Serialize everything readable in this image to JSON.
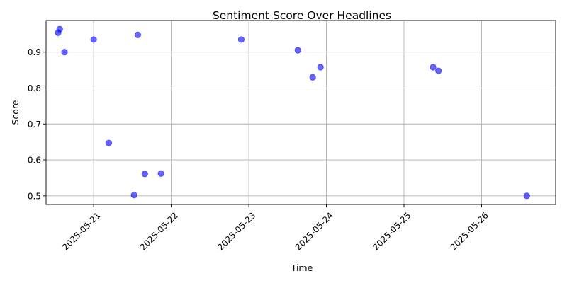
{
  "chart_data": {
    "type": "scatter",
    "title": "Sentiment Score Over Headlines",
    "xlabel": "Time",
    "ylabel": "Score",
    "x_scale": "date",
    "xlim": [
      "2025-05-20T09:17",
      "2025-05-26T22:55"
    ],
    "ylim": [
      0.476,
      0.988
    ],
    "grid": true,
    "marker_color": "#0000ff",
    "marker_alpha": 0.6,
    "x_ticks": [
      {
        "value": "2025-05-21",
        "label": "2025-05-21"
      },
      {
        "value": "2025-05-22",
        "label": "2025-05-22"
      },
      {
        "value": "2025-05-23",
        "label": "2025-05-23"
      },
      {
        "value": "2025-05-24",
        "label": "2025-05-24"
      },
      {
        "value": "2025-05-25",
        "label": "2025-05-25"
      },
      {
        "value": "2025-05-26",
        "label": "2025-05-26"
      }
    ],
    "y_ticks": [
      {
        "value": 0.5,
        "label": "0.5"
      },
      {
        "value": 0.6,
        "label": "0.6"
      },
      {
        "value": 0.7,
        "label": "0.7"
      },
      {
        "value": 0.8,
        "label": "0.8"
      },
      {
        "value": 0.9,
        "label": "0.9"
      }
    ],
    "points": [
      {
        "x": "2025-05-20T13:00",
        "y": 0.954
      },
      {
        "x": "2025-05-20T13:30",
        "y": 0.964
      },
      {
        "x": "2025-05-20T15:00",
        "y": 0.9
      },
      {
        "x": "2025-05-21T00:00",
        "y": 0.935
      },
      {
        "x": "2025-05-21T04:40",
        "y": 0.647
      },
      {
        "x": "2025-05-21T12:30",
        "y": 0.502
      },
      {
        "x": "2025-05-21T13:40",
        "y": 0.948
      },
      {
        "x": "2025-05-21T15:50",
        "y": 0.561
      },
      {
        "x": "2025-05-21T20:50",
        "y": 0.562
      },
      {
        "x": "2025-05-22T21:40",
        "y": 0.935
      },
      {
        "x": "2025-05-23T15:10",
        "y": 0.905
      },
      {
        "x": "2025-05-23T19:45",
        "y": 0.83
      },
      {
        "x": "2025-05-23T22:10",
        "y": 0.858
      },
      {
        "x": "2025-05-25T09:00",
        "y": 0.858
      },
      {
        "x": "2025-05-25T10:40",
        "y": 0.848
      },
      {
        "x": "2025-05-26T14:00",
        "y": 0.5
      }
    ]
  }
}
